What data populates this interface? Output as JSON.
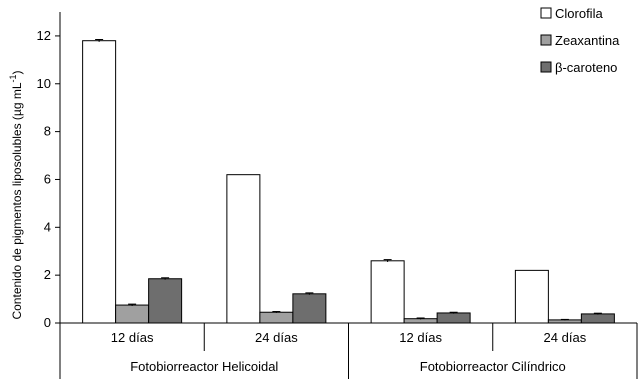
{
  "chart_data": {
    "type": "bar",
    "title": "",
    "xlabel": "",
    "ylabel": "Contenido de pigmentos liposolubles (µg mL",
    "ylabel_sup": "-1",
    "ylabel_close": ")",
    "ylim": [
      0,
      13
    ],
    "yticks": [
      0,
      2,
      4,
      6,
      8,
      10,
      12
    ],
    "grid": false,
    "legend_position": "top-right",
    "groups": [
      "Fotobiorreactor Helicoidal",
      "Fotobiorreactor Cilíndrico"
    ],
    "categories": [
      "12 días",
      "24 días",
      "12 días",
      "24 días"
    ],
    "category_group": [
      0,
      0,
      1,
      1
    ],
    "series": [
      {
        "name": "Clorofila",
        "color": "#ffffff",
        "values": [
          11.8,
          6.2,
          2.6,
          2.2
        ],
        "errors": [
          0.05,
          0,
          0.05,
          0
        ]
      },
      {
        "name": "Zeaxantina",
        "color": "#a0a0a0",
        "values": [
          0.75,
          0.45,
          0.18,
          0.13
        ],
        "errors": [
          0.04,
          0.03,
          0.03,
          0.02
        ]
      },
      {
        "name": "β-caroteno",
        "color": "#6e6e6e",
        "values": [
          1.85,
          1.22,
          0.42,
          0.38
        ],
        "errors": [
          0.04,
          0.04,
          0.03,
          0.03
        ]
      }
    ]
  }
}
